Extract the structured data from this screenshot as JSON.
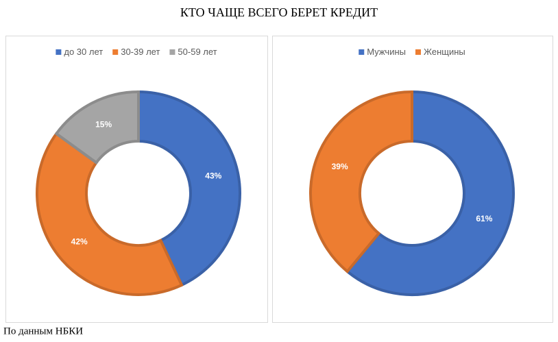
{
  "title": "КТО ЧАЩЕ ВСЕГО БЕРЕТ КРЕДИТ",
  "source": "По данным НБКИ",
  "chart_data": [
    {
      "type": "donut",
      "categories": [
        "до 30 лет",
        "30-39 лет",
        "50-59 лет"
      ],
      "values": [
        43,
        42,
        15
      ],
      "value_labels": [
        "43%",
        "42%",
        "15%"
      ],
      "colors": [
        "#4472c4",
        "#ed7d31",
        "#a5a5a5"
      ],
      "legend": "top"
    },
    {
      "type": "donut",
      "categories": [
        "Мужчины",
        "Женщины"
      ],
      "values": [
        61,
        39
      ],
      "value_labels": [
        "61%",
        "39%"
      ],
      "colors": [
        "#4472c4",
        "#ed7d31"
      ],
      "legend": "top"
    }
  ]
}
